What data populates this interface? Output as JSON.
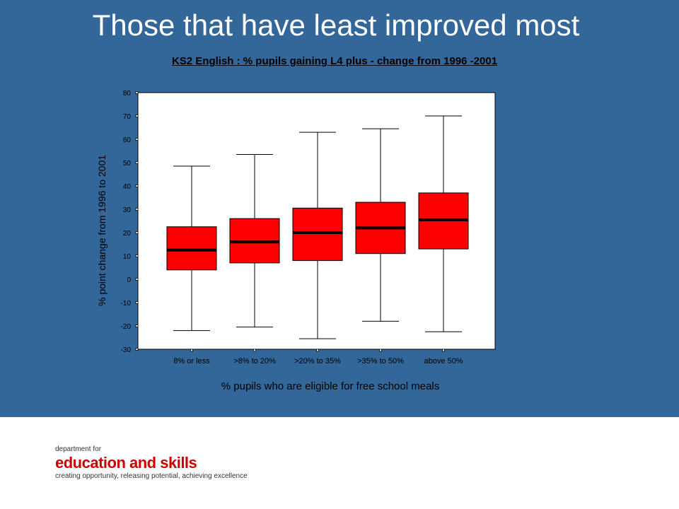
{
  "slide": {
    "title": "Those that have least improved most",
    "logo": {
      "line1": "department for",
      "line2": "education and skills",
      "line3": "creating opportunity, releasing potential, achieving excellence"
    },
    "colors": {
      "panel": "#336699",
      "box": "#ff0000",
      "median": "#000000",
      "plot_bg": "#ffffff",
      "logo_red": "#cc0000"
    }
  },
  "chart_data": {
    "type": "box",
    "title": "KS2 English : % pupils gaining L4 plus - change from 1996 -2001",
    "xlabel": "% pupils who are eligible for free school meals",
    "ylabel": "% point change from 1996 to 2001",
    "ylim": [
      -30,
      80
    ],
    "yticks": [
      -30,
      -20,
      -10,
      0,
      10,
      20,
      30,
      40,
      50,
      60,
      70,
      80
    ],
    "grid": false,
    "categories": [
      "8% or less",
      ">8% to 20%",
      ">20% to 35%",
      ">35% to 50%",
      "above 50%"
    ],
    "boxes": [
      {
        "min": -22,
        "q1": 4,
        "median": 12.5,
        "q3": 22.5,
        "max": 48.5
      },
      {
        "min": -20.5,
        "q1": 7,
        "median": 16,
        "q3": 26,
        "max": 53.5
      },
      {
        "min": -25.5,
        "q1": 8,
        "median": 20,
        "q3": 30.5,
        "max": 63
      },
      {
        "min": -18,
        "q1": 11,
        "median": 22,
        "q3": 33,
        "max": 64.5
      },
      {
        "min": -22.5,
        "q1": 13,
        "median": 25.5,
        "q3": 37,
        "max": 70
      }
    ]
  }
}
